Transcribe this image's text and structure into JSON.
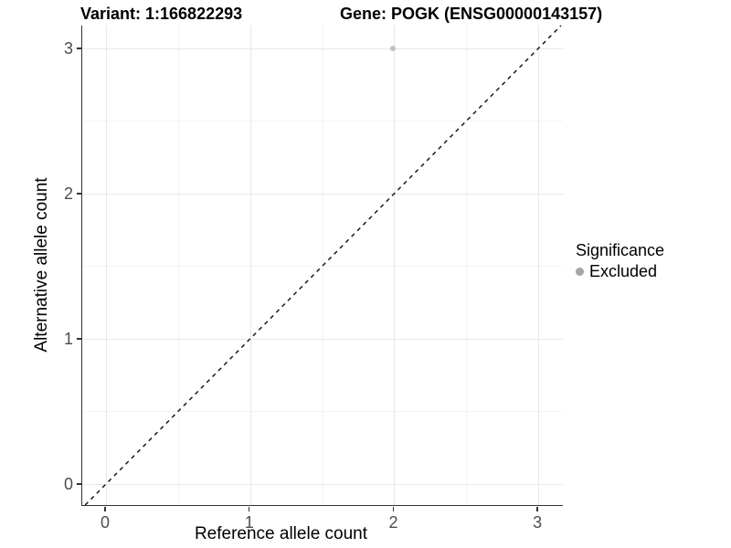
{
  "chart_data": {
    "type": "scatter",
    "titles": [
      "Variant: 1:166822293",
      "Gene: POGK (ENSG00000143157)"
    ],
    "xlabel": "Reference allele count",
    "ylabel": "Alternative allele count",
    "xlim": [
      -0.165,
      3.17
    ],
    "ylim": [
      -0.145,
      3.157
    ],
    "xticks": [
      0,
      1,
      2,
      3
    ],
    "yticks": [
      0,
      1,
      2,
      3
    ],
    "grid": "major and minor, light gray on white panel",
    "points": [
      {
        "x": 2,
        "y": 3,
        "series": "Excluded"
      }
    ],
    "reference_line": {
      "type": "identity y=x",
      "style": "dashed"
    },
    "legend": {
      "title": "Significance",
      "position": "right",
      "entries": [
        {
          "label": "Excluded",
          "color": "#a6a6a6",
          "marker": "circle"
        }
      ]
    },
    "colors": {
      "point": "#c0c0c0",
      "legend_dot": "#a6a6a6",
      "grid_major": "#e8e8e8",
      "grid_minor": "#f4f4f4",
      "axis_line": "#333333",
      "tick_text": "#4d4d4d",
      "dashed_line": "#1a1a1a",
      "background": "#ffffff"
    }
  }
}
